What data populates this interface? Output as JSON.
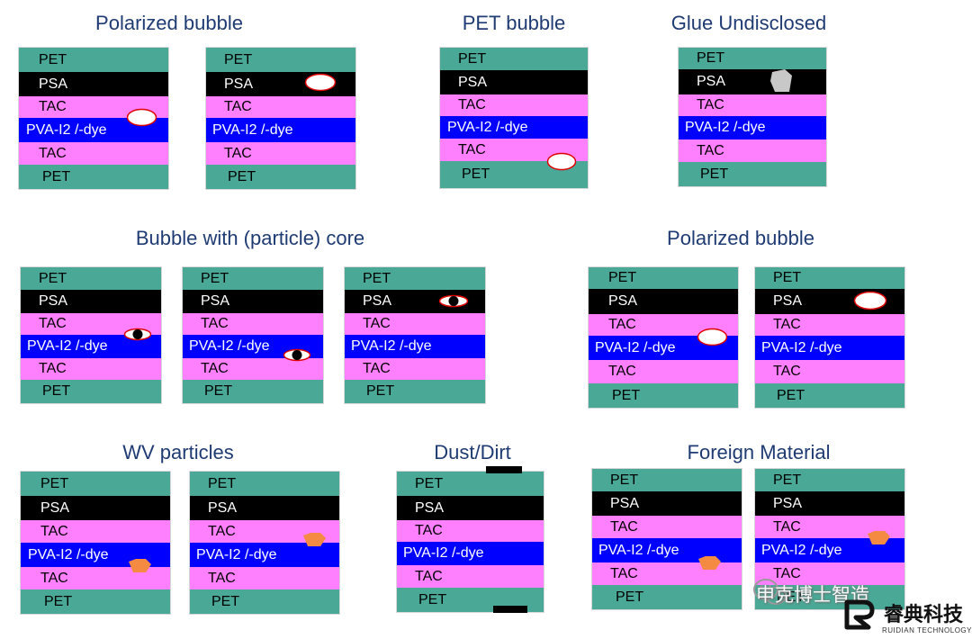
{
  "titles": {
    "polarized_bubble": "Polarized bubble",
    "pet_bubble": "PET bubble",
    "glue_undisclosed": "Glue Undisclosed",
    "bubble_particle_core": "Bubble with (particle) core",
    "polarized_bubble_2": "Polarized bubble",
    "wv_particles": "WV particles",
    "dust_dirt": "Dust/Dirt",
    "foreign_material": "Foreign Material"
  },
  "layer_labels": {
    "pet": "PET",
    "psa": "PSA",
    "tac": "TAC",
    "pva": "PVA-I2 /-dye"
  },
  "layer_order": [
    "pet",
    "psa",
    "tac",
    "pva",
    "tac",
    "pet"
  ],
  "colors": {
    "pet": "#4aa896",
    "psa": "#000000",
    "tac": "#ff80ff",
    "pva": "#0000ff",
    "title": "#1f3b73",
    "bubble_outline": "#e00000",
    "particle": "#f58a42",
    "glue": "#c8c8c8"
  },
  "watermark": {
    "line1": "申克博士智造",
    "line2": "睿典科技",
    "line3": "RUIDIAN TECHNOLOGY"
  }
}
